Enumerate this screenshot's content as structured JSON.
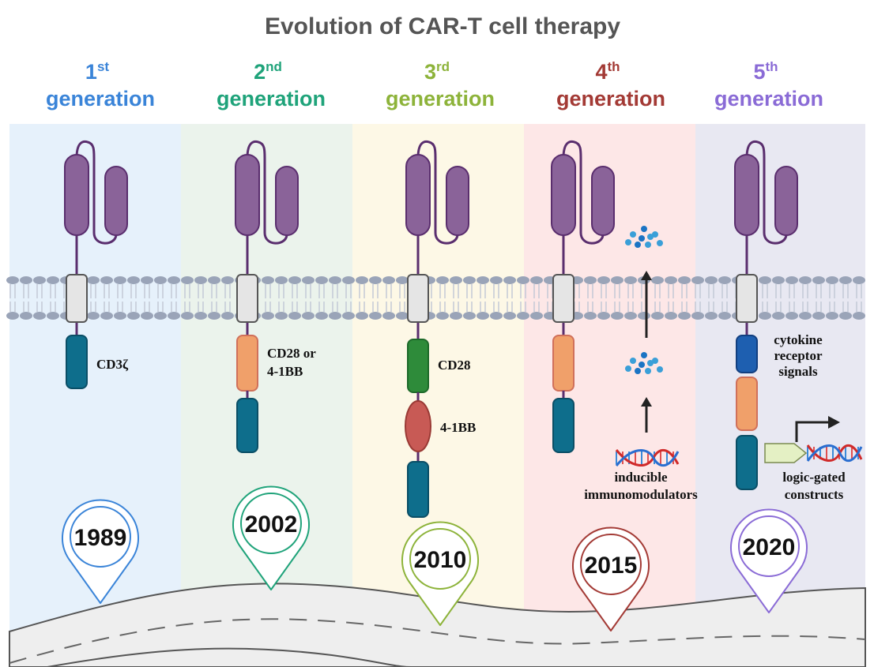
{
  "title": "Evolution of CAR-T cell therapy",
  "generations": [
    {
      "num": "1",
      "sup": "st",
      "word": "generation",
      "color": "#3a84d8",
      "bg": "#e6f1fb",
      "year": "1989",
      "labels": [
        "CD3ζ"
      ]
    },
    {
      "num": "2",
      "sup": "nd",
      "word": "generation",
      "color": "#1fa37a",
      "bg": "#ebf3ec",
      "year": "2002",
      "labels": [
        "CD28 or",
        "4-1BB"
      ]
    },
    {
      "num": "3",
      "sup": "rd",
      "word": "generation",
      "color": "#8db33a",
      "bg": "#fdf8e6",
      "year": "2010",
      "labels": [
        "CD28",
        "4-1BB"
      ]
    },
    {
      "num": "4",
      "sup": "th",
      "word": "generation",
      "color": "#a33a35",
      "bg": "#fde7e7",
      "year": "2015",
      "labels": [
        "inducible",
        "immunomodulators"
      ]
    },
    {
      "num": "5",
      "sup": "th",
      "word": "generation",
      "color": "#8a6bd6",
      "bg": "#e8e8f2",
      "year": "2020",
      "labels": [
        "cytokine",
        "receptor",
        "signals",
        "logic-gated",
        "constructs"
      ]
    }
  ],
  "colors": {
    "receptor": "#8a6399",
    "membrane": "#9aa4b8",
    "cd3z": "#0e6e8c",
    "costim": "#f0a06a",
    "cd28": "#2e8b3a",
    "four1bb": "#c85a55",
    "cytokine": "#1e5fb0"
  }
}
